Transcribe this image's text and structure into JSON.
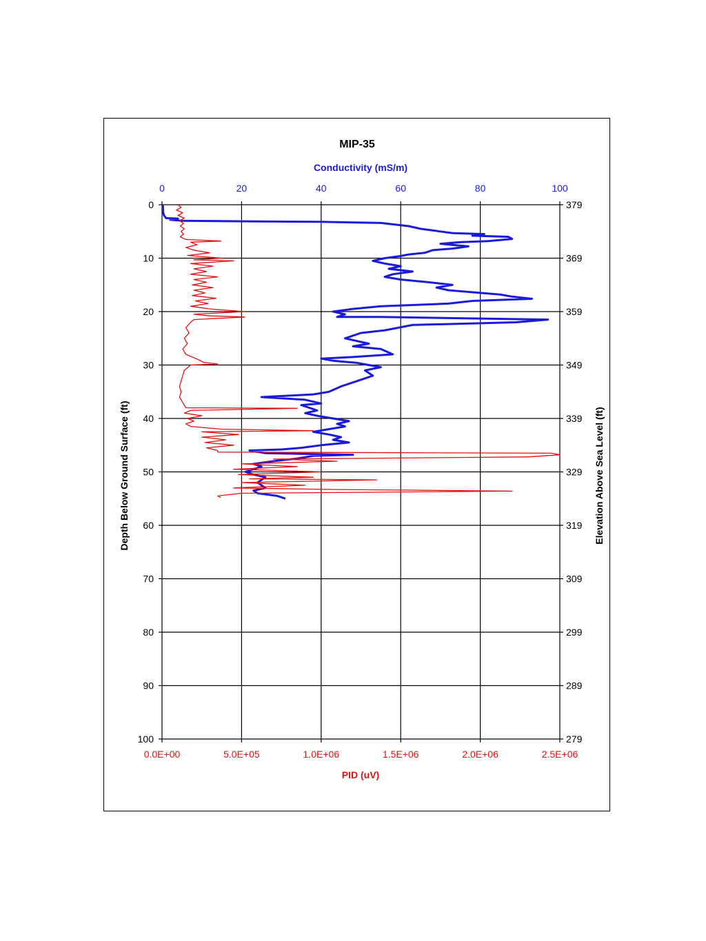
{
  "chart_data": {
    "type": "line",
    "title": "MIP-35",
    "top_axis": {
      "label": "Conductivity (mS/m)",
      "range": [
        0,
        100
      ],
      "ticks": [
        "0",
        "20",
        "40",
        "60",
        "80",
        "100"
      ],
      "color": "#1a1adb"
    },
    "bottom_axis": {
      "label": "PID (uV)",
      "range": [
        0,
        2500000
      ],
      "ticks": [
        "0.0E+00",
        "5.0E+05",
        "1.0E+06",
        "1.5E+06",
        "2.0E+06",
        "2.5E+06"
      ],
      "color": "#e01010"
    },
    "left_axis": {
      "label": "Depth Below Ground Surface (ft)",
      "range": [
        0,
        100
      ],
      "inverted": true,
      "ticks": [
        "0",
        "10",
        "20",
        "30",
        "40",
        "50",
        "60",
        "70",
        "80",
        "90",
        "100"
      ]
    },
    "right_axis": {
      "label": "Elevation Above Sea Level (ft)",
      "range": [
        379,
        279
      ],
      "ticks": [
        "379",
        "369",
        "359",
        "349",
        "339",
        "329",
        "319",
        "309",
        "299",
        "289",
        "279"
      ]
    },
    "grid": true,
    "series": [
      {
        "axis": "top",
        "color": "#1a1adb",
        "points": [
          [
            0.2,
            0
          ],
          [
            0.3,
            1.5
          ],
          [
            0.5,
            2
          ],
          [
            1,
            2.5
          ],
          [
            4,
            2.6
          ],
          [
            2,
            2.8
          ],
          [
            5,
            3
          ],
          [
            20,
            3.1
          ],
          [
            40,
            3.2
          ],
          [
            55,
            3.4
          ],
          [
            62,
            4
          ],
          [
            65,
            4.5
          ],
          [
            70,
            5
          ],
          [
            73,
            5.3
          ],
          [
            81,
            5.5
          ],
          [
            78,
            5.8
          ],
          [
            87,
            6
          ],
          [
            88,
            6.4
          ],
          [
            82,
            6.8
          ],
          [
            75,
            7
          ],
          [
            70,
            7.3
          ],
          [
            77,
            7.8
          ],
          [
            73,
            8.2
          ],
          [
            68,
            8.5
          ],
          [
            66,
            9
          ],
          [
            62,
            9.3
          ],
          [
            60,
            9.6
          ],
          [
            56,
            10
          ],
          [
            53,
            10.5
          ],
          [
            56,
            11
          ],
          [
            60,
            11.5
          ],
          [
            57,
            12
          ],
          [
            63,
            12.5
          ],
          [
            58,
            13
          ],
          [
            56,
            13.5
          ],
          [
            60,
            14
          ],
          [
            67,
            14.5
          ],
          [
            73,
            15
          ],
          [
            69,
            15.5
          ],
          [
            72,
            16
          ],
          [
            85,
            16.8
          ],
          [
            88,
            17.2
          ],
          [
            93,
            17.6
          ],
          [
            78,
            18
          ],
          [
            72,
            18.5
          ],
          [
            55,
            19
          ],
          [
            48,
            19.5
          ],
          [
            43,
            20
          ],
          [
            46,
            20.5
          ],
          [
            44,
            21
          ],
          [
            55,
            21
          ],
          [
            97,
            21.5
          ],
          [
            89,
            22
          ],
          [
            63,
            22.5
          ],
          [
            56,
            23.5
          ],
          [
            50,
            24
          ],
          [
            46,
            25
          ],
          [
            52,
            26
          ],
          [
            48,
            26.5
          ],
          [
            55,
            27
          ],
          [
            58,
            28
          ],
          [
            48,
            28.5
          ],
          [
            40,
            28.8
          ],
          [
            43,
            29.2
          ],
          [
            49,
            29.6
          ],
          [
            52,
            30
          ],
          [
            55,
            30.4
          ],
          [
            51,
            31
          ],
          [
            53,
            32
          ],
          [
            49,
            33
          ],
          [
            45,
            34
          ],
          [
            42,
            35
          ],
          [
            38,
            35.5
          ],
          [
            25,
            36
          ],
          [
            36,
            36.5
          ],
          [
            40,
            37.2
          ],
          [
            35,
            37.5
          ],
          [
            37,
            38
          ],
          [
            39,
            38.5
          ],
          [
            36,
            39
          ],
          [
            39,
            39.5
          ],
          [
            43,
            40
          ],
          [
            47,
            40.5
          ],
          [
            44,
            41
          ],
          [
            46,
            41.5
          ],
          [
            42,
            42
          ],
          [
            38,
            42.5
          ],
          [
            42,
            43
          ],
          [
            45,
            43.5
          ],
          [
            43,
            44
          ],
          [
            47,
            44.5
          ],
          [
            40,
            45
          ],
          [
            35,
            45.5
          ],
          [
            30,
            45.8
          ],
          [
            22,
            46
          ],
          [
            26,
            46.5
          ],
          [
            48,
            46.8
          ],
          [
            38,
            47
          ],
          [
            34,
            47.5
          ],
          [
            28,
            48
          ],
          [
            23,
            48.5
          ],
          [
            25,
            49
          ],
          [
            21,
            50
          ],
          [
            23,
            50.5
          ],
          [
            26,
            51
          ],
          [
            24,
            52
          ],
          [
            26,
            53
          ],
          [
            23,
            53.5
          ],
          [
            24,
            54
          ],
          [
            29,
            54.5
          ],
          [
            31,
            55
          ]
        ]
      },
      {
        "axis": "bottom",
        "color": "#e01010",
        "points": [
          [
            100000,
            0
          ],
          [
            120000,
            0.5
          ],
          [
            90000,
            1
          ],
          [
            130000,
            1.5
          ],
          [
            100000,
            2
          ],
          [
            140000,
            2.5
          ],
          [
            110000,
            3
          ],
          [
            135000,
            3.5
          ],
          [
            115000,
            4
          ],
          [
            140000,
            4.5
          ],
          [
            120000,
            5
          ],
          [
            135000,
            5.5
          ],
          [
            115000,
            6
          ],
          [
            150000,
            6.5
          ],
          [
            370000,
            6.8
          ],
          [
            180000,
            7
          ],
          [
            220000,
            7.5
          ],
          [
            150000,
            8
          ],
          [
            200000,
            8.5
          ],
          [
            300000,
            9
          ],
          [
            160000,
            9.5
          ],
          [
            380000,
            10
          ],
          [
            200000,
            10.3
          ],
          [
            450000,
            10.5
          ],
          [
            180000,
            11
          ],
          [
            320000,
            11.5
          ],
          [
            200000,
            12
          ],
          [
            280000,
            12.5
          ],
          [
            180000,
            13
          ],
          [
            350000,
            13.5
          ],
          [
            200000,
            14
          ],
          [
            280000,
            14.5
          ],
          [
            190000,
            15
          ],
          [
            320000,
            15.5
          ],
          [
            200000,
            16
          ],
          [
            270000,
            16.5
          ],
          [
            190000,
            17
          ],
          [
            340000,
            17.5
          ],
          [
            210000,
            18
          ],
          [
            290000,
            18.5
          ],
          [
            180000,
            19
          ],
          [
            300000,
            19.5
          ],
          [
            520000,
            20
          ],
          [
            200000,
            20.5
          ],
          [
            300000,
            20.8
          ],
          [
            520000,
            21
          ],
          [
            200000,
            21.5
          ],
          [
            180000,
            22
          ],
          [
            150000,
            23
          ],
          [
            170000,
            24
          ],
          [
            140000,
            25
          ],
          [
            160000,
            26
          ],
          [
            130000,
            27
          ],
          [
            150000,
            28
          ],
          [
            230000,
            29
          ],
          [
            260000,
            29.5
          ],
          [
            350000,
            29.8
          ],
          [
            180000,
            30
          ],
          [
            140000,
            31
          ],
          [
            130000,
            32
          ],
          [
            120000,
            33
          ],
          [
            110000,
            34
          ],
          [
            120000,
            35
          ],
          [
            110000,
            36
          ],
          [
            130000,
            37
          ],
          [
            150000,
            38
          ],
          [
            850000,
            38.1
          ],
          [
            180000,
            38.5
          ],
          [
            140000,
            39
          ],
          [
            250000,
            39.5
          ],
          [
            160000,
            40
          ],
          [
            200000,
            40.5
          ],
          [
            150000,
            41
          ],
          [
            180000,
            41.5
          ],
          [
            370000,
            42
          ],
          [
            950000,
            42.3
          ],
          [
            250000,
            42.5
          ],
          [
            480000,
            43
          ],
          [
            250000,
            43.5
          ],
          [
            400000,
            44
          ],
          [
            270000,
            44.5
          ],
          [
            450000,
            45
          ],
          [
            280000,
            45.5
          ],
          [
            350000,
            46
          ],
          [
            350000,
            46.3
          ],
          [
            2450000,
            46.5
          ],
          [
            2500000,
            46.8
          ],
          [
            2300000,
            47.2
          ],
          [
            700000,
            47.6
          ],
          [
            1100000,
            48
          ],
          [
            500000,
            48.5
          ],
          [
            850000,
            49
          ],
          [
            450000,
            49.5
          ],
          [
            1000000,
            50
          ],
          [
            480000,
            50.5
          ],
          [
            950000,
            51
          ],
          [
            550000,
            51.3
          ],
          [
            1350000,
            51.5
          ],
          [
            500000,
            52
          ],
          [
            900000,
            52.5
          ],
          [
            450000,
            53
          ],
          [
            1100000,
            53.3
          ],
          [
            2200000,
            53.6
          ],
          [
            500000,
            54
          ],
          [
            350000,
            54.5
          ],
          [
            370000,
            54.8
          ]
        ]
      }
    ]
  }
}
